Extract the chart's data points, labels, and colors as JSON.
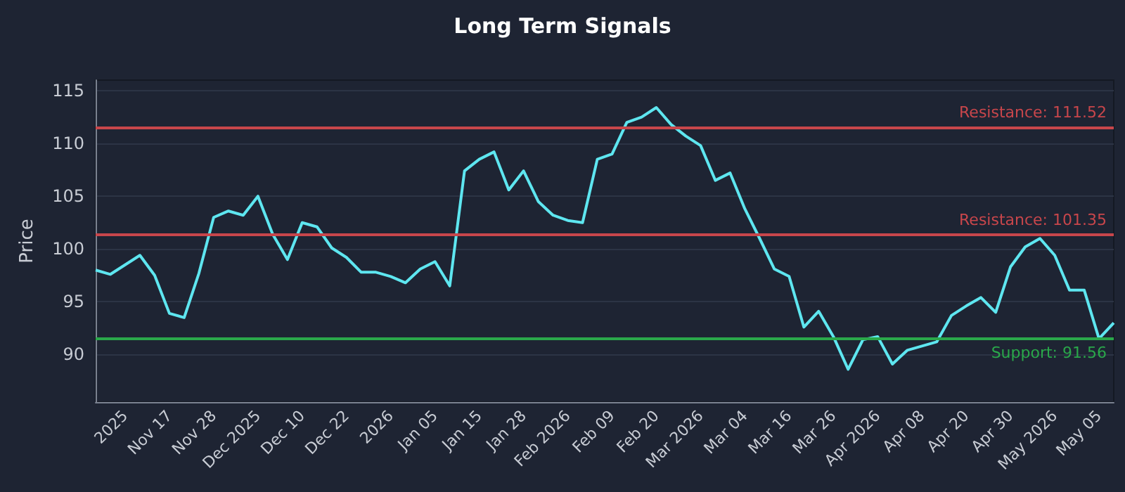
{
  "chart_data": {
    "type": "line",
    "title": "Long Term Signals",
    "ylabel": "Price",
    "categories": [
      null,
      null,
      "2025",
      null,
      null,
      "Nov 17",
      null,
      null,
      "Nov 28",
      null,
      null,
      "Dec 2025",
      null,
      null,
      "Dec 10",
      null,
      null,
      "Dec 22",
      null,
      null,
      "2026",
      null,
      null,
      "Jan 05",
      null,
      null,
      "Jan 15",
      null,
      null,
      "Jan 28",
      null,
      null,
      "Feb 2026",
      null,
      null,
      "Feb 09",
      null,
      null,
      "Feb 20",
      null,
      null,
      "Mar 2026",
      null,
      null,
      "Mar 04",
      null,
      null,
      "Mar 16",
      null,
      null,
      "Mar 26",
      null,
      null,
      "Apr 2026",
      null,
      null,
      "Apr 08",
      null,
      null,
      "Apr 20",
      null,
      null,
      "Apr 30",
      null,
      null,
      "May 2026",
      null,
      null,
      "May 05",
      null
    ],
    "series": [
      {
        "color": "#5ee6f0",
        "values": [
          98.0,
          97.6,
          98.5,
          99.4,
          97.5,
          93.9,
          93.5,
          97.7,
          103.0,
          103.6,
          103.2,
          105.0,
          101.4,
          99.0,
          102.5,
          102.1,
          100.1,
          99.2,
          97.8,
          97.8,
          97.4,
          96.8,
          98.1,
          98.8,
          96.5,
          107.4,
          108.5,
          109.2,
          105.6,
          107.4,
          104.5,
          103.2,
          102.7,
          102.5,
          108.5,
          109.0,
          112.0,
          112.5,
          113.4,
          111.8,
          110.7,
          109.8,
          106.5,
          107.2,
          103.8,
          101.0,
          98.1,
          97.4,
          92.6,
          94.1,
          91.7,
          88.6,
          91.4,
          91.7,
          89.1,
          90.4,
          90.8,
          91.2,
          93.7,
          94.6,
          95.4,
          94.0,
          98.3,
          100.2,
          101.0,
          99.4,
          96.1,
          96.1,
          91.5,
          93.0
        ]
      }
    ],
    "ylim": [
      85.5,
      116
    ],
    "yticks": [
      90,
      95,
      100,
      105,
      110,
      115
    ],
    "grid": "y",
    "marker": "none",
    "line_style": "solid",
    "ref_lines": [
      {
        "axis": "y",
        "value": 111.52,
        "label": "Resistance: 111.52",
        "color": "#c8464b"
      },
      {
        "axis": "y",
        "value": 101.35,
        "label": "Resistance: 101.35",
        "color": "#c8464b"
      },
      {
        "axis": "y",
        "value": 91.56,
        "label": "Support: 91.56",
        "color": "#2aa84a"
      }
    ]
  }
}
